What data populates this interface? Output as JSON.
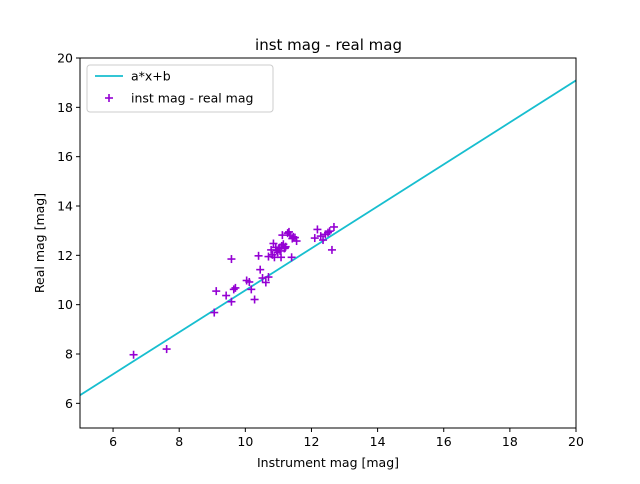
{
  "chart_data": {
    "type": "scatter",
    "title": "inst mag - real mag",
    "xlabel": "Instrument mag [mag]",
    "ylabel": "Real mag [mag]",
    "xlim": [
      5,
      20
    ],
    "ylim": [
      5,
      20
    ],
    "xticks": [
      "6",
      "8",
      "10",
      "12",
      "14",
      "16",
      "18",
      "20"
    ],
    "yticks": [
      "6",
      "8",
      "10",
      "12",
      "14",
      "16",
      "18",
      "20"
    ],
    "grid": false,
    "legend_position": "upper-left",
    "line_color": "#17becf",
    "point_color": "#9400d3",
    "series": [
      {
        "name": "a*x+b",
        "kind": "line",
        "x": [
          5,
          20
        ],
        "y": [
          6.33,
          19.09
        ]
      },
      {
        "name": "inst mag - real mag",
        "kind": "scatter",
        "marker": "+",
        "x": [
          6.62,
          7.62,
          9.06,
          9.12,
          9.42,
          9.58,
          9.58,
          9.65,
          9.7,
          10.04,
          10.12,
          10.18,
          10.28,
          10.4,
          10.45,
          10.52,
          10.62,
          10.7,
          10.7,
          10.78,
          10.82,
          10.85,
          10.88,
          10.92,
          10.95,
          10.98,
          11.02,
          11.05,
          11.08,
          11.1,
          11.12,
          11.15,
          11.18,
          11.2,
          11.22,
          11.28,
          11.32,
          11.35,
          11.4,
          11.42,
          11.45,
          11.5,
          11.55,
          12.1,
          12.18,
          12.28,
          12.35,
          12.42,
          12.5,
          12.55,
          12.62,
          12.68
        ],
        "y": [
          7.97,
          8.2,
          9.68,
          10.55,
          10.37,
          11.85,
          10.12,
          10.62,
          10.68,
          10.98,
          10.92,
          10.62,
          10.21,
          11.98,
          11.42,
          11.08,
          10.9,
          11.12,
          11.95,
          12.22,
          12.02,
          12.48,
          11.92,
          12.32,
          12.2,
          12.12,
          12.3,
          12.18,
          11.92,
          12.38,
          12.82,
          12.45,
          12.28,
          12.3,
          12.35,
          12.9,
          12.95,
          12.82,
          11.92,
          12.68,
          12.75,
          12.72,
          12.58,
          12.7,
          13.05,
          12.78,
          12.62,
          12.85,
          12.92,
          12.98,
          12.22,
          13.15
        ]
      }
    ]
  }
}
